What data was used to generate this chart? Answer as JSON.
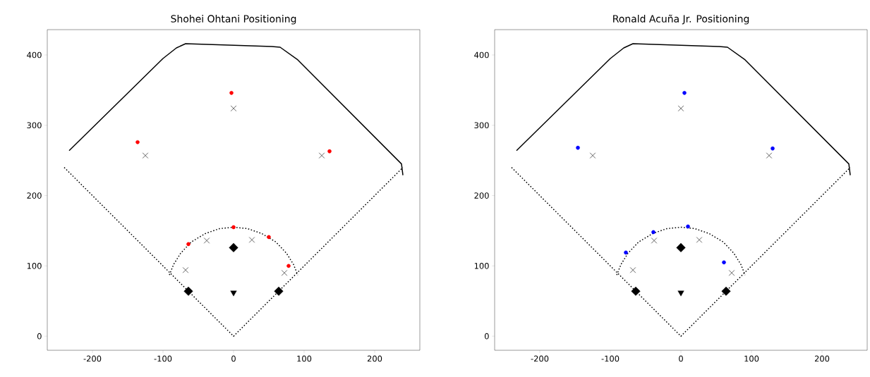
{
  "chart_data": [
    {
      "type": "scatter",
      "title": "Shohei Ohtani Positioning",
      "xlim": [
        -264,
        264
      ],
      "ylim": [
        -20,
        436
      ],
      "xticks": [
        -200,
        -100,
        0,
        100,
        200
      ],
      "yticks": [
        0,
        100,
        200,
        300,
        400
      ],
      "grid": false,
      "series": [
        {
          "type": "line",
          "color": "#000000",
          "line_style": "solid",
          "x": [
            -233,
            -100,
            -81,
            -68,
            54,
            66,
            91,
            238,
            240
          ],
          "values": [
            264,
            395,
            410,
            416,
            412,
            411,
            393,
            245,
            229
          ]
        },
        {
          "type": "line",
          "color": "#000000",
          "line_style": "dotted",
          "x": [
            -240,
            0,
            240
          ],
          "values": [
            240,
            0,
            240
          ]
        },
        {
          "type": "line",
          "color": "#000000",
          "line_style": "dotted",
          "x": [
            -91,
            -85,
            -75,
            -60,
            -40,
            -20,
            0,
            20,
            40,
            60,
            75,
            85,
            91
          ],
          "values": [
            87,
            102,
            118,
            134,
            146,
            153,
            155,
            153,
            146,
            134,
            118,
            102,
            87
          ]
        },
        {
          "type": "scatter",
          "marker": "cross",
          "color": "#666666",
          "x": [
            0,
            -125,
            125,
            -38,
            26,
            -68,
            72
          ],
          "values": [
            324,
            257,
            257,
            136,
            137,
            94,
            90
          ]
        },
        {
          "type": "scatter",
          "marker": "diamond",
          "color": "#000000",
          "x": [
            -64,
            64,
            0
          ],
          "values": [
            64,
            64,
            126
          ]
        },
        {
          "type": "scatter",
          "marker": "triangle",
          "color": "#000000",
          "x": [
            0
          ],
          "values": [
            62
          ]
        },
        {
          "type": "scatter",
          "marker": "circle",
          "color": "#ff0000",
          "x": [
            -3,
            -136,
            136,
            0,
            -64,
            50,
            78
          ],
          "values": [
            346,
            276,
            263,
            155,
            131,
            141,
            100
          ]
        }
      ]
    },
    {
      "type": "scatter",
      "title": "Ronald Acuña Jr. Positioning",
      "xlim": [
        -264,
        264
      ],
      "ylim": [
        -20,
        436
      ],
      "xticks": [
        -200,
        -100,
        0,
        100,
        200
      ],
      "yticks": [
        0,
        100,
        200,
        300,
        400
      ],
      "grid": false,
      "series": [
        {
          "type": "line",
          "color": "#000000",
          "line_style": "solid",
          "x": [
            -233,
            -100,
            -81,
            -68,
            54,
            66,
            91,
            238,
            240
          ],
          "values": [
            264,
            395,
            410,
            416,
            412,
            411,
            393,
            245,
            229
          ]
        },
        {
          "type": "line",
          "color": "#000000",
          "line_style": "dotted",
          "x": [
            -240,
            0,
            240
          ],
          "values": [
            240,
            0,
            240
          ]
        },
        {
          "type": "line",
          "color": "#000000",
          "line_style": "dotted",
          "x": [
            -91,
            -85,
            -75,
            -60,
            -40,
            -20,
            0,
            20,
            40,
            60,
            75,
            85,
            91
          ],
          "values": [
            87,
            102,
            118,
            134,
            146,
            153,
            155,
            153,
            146,
            134,
            118,
            102,
            87
          ]
        },
        {
          "type": "scatter",
          "marker": "cross",
          "color": "#666666",
          "x": [
            0,
            -125,
            125,
            -38,
            26,
            -68,
            72
          ],
          "values": [
            324,
            257,
            257,
            136,
            137,
            94,
            90
          ]
        },
        {
          "type": "scatter",
          "marker": "diamond",
          "color": "#000000",
          "x": [
            -64,
            64,
            0
          ],
          "values": [
            64,
            64,
            126
          ]
        },
        {
          "type": "scatter",
          "marker": "triangle",
          "color": "#000000",
          "x": [
            0
          ],
          "values": [
            62
          ]
        },
        {
          "type": "scatter",
          "marker": "circle",
          "color": "#0000ff",
          "x": [
            5,
            -146,
            130,
            10,
            -39,
            -78,
            61
          ],
          "values": [
            346,
            268,
            267,
            156,
            148,
            119,
            105
          ]
        }
      ]
    }
  ]
}
